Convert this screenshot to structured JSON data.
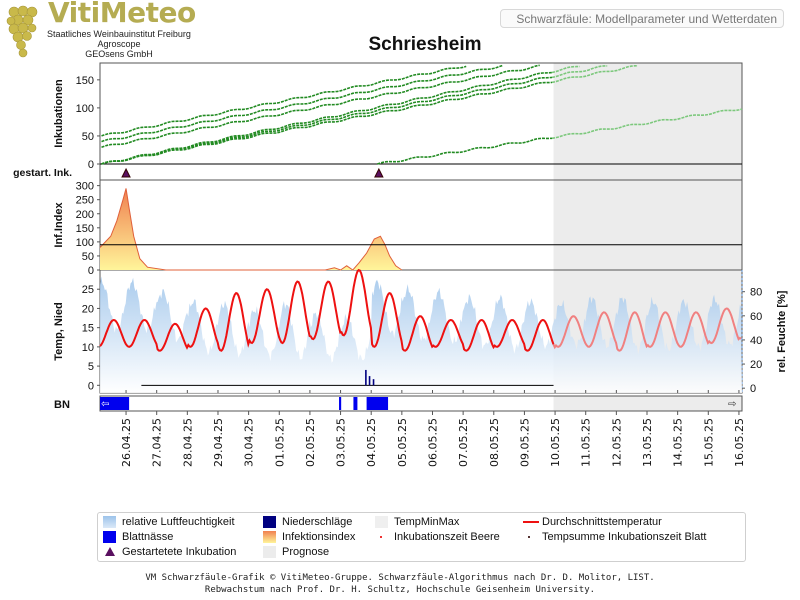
{
  "header": {
    "brand": "VitiMeteo",
    "org_lines": [
      "Staatliches Weinbauinstitut Freiburg",
      "Agroscope",
      "GEOsens GmbH"
    ],
    "top_label": "Schwarzfäule: Modellparameter und Wetterdaten"
  },
  "colors": {
    "incubation": "#228b22",
    "incubation_forecast": "#7cc87c",
    "temp": "#ee1111",
    "temp_forecast": "#f08080",
    "humidity": "#9cc3ea",
    "leaf_wetness": "#0000ee",
    "precip": "#000080",
    "forecast_bg": "#ececec",
    "infection_fill_top": "#f08050",
    "infection_fill_bottom": "#fff59a",
    "marker": "#5a1060"
  },
  "chart_data": {
    "type": "line",
    "title": "Schriesheim",
    "x_dates": [
      "26.04.25",
      "27.04.25",
      "28.04.25",
      "29.04.25",
      "30.04.25",
      "01.05.25",
      "02.05.25",
      "03.05.25",
      "04.05.25",
      "05.05.25",
      "06.05.25",
      "07.05.25",
      "08.05.25",
      "09.05.25",
      "10.05.25",
      "11.05.25",
      "12.05.25",
      "13.05.25",
      "14.05.25",
      "15.05.25",
      "16.05.25"
    ],
    "x_range_days": [
      -0.85,
      20.1
    ],
    "forecast_start_day": 13.95,
    "panels": {
      "incubation": {
        "ylabel": "Inkubationen",
        "yticks": [
          0,
          50,
          100,
          150
        ],
        "ylim": [
          0,
          180
        ],
        "threshold": 0,
        "series": [
          {
            "start_day": -0.8,
            "start_value": 50,
            "slope_per_day": 10.5
          },
          {
            "start_day": -0.8,
            "start_value": 40,
            "slope_per_day": 10.3
          },
          {
            "start_day": -0.8,
            "start_value": 30,
            "slope_per_day": 10.1
          },
          {
            "start_day": -0.8,
            "start_value": 0,
            "slope_per_day": 11.2
          },
          {
            "start_day": -0.8,
            "start_value": 0,
            "slope_per_day": 10.6
          },
          {
            "start_day": -0.8,
            "start_value": 0,
            "slope_per_day": 10.0
          },
          {
            "start_day": 8.2,
            "start_value": 0,
            "slope_per_day": 8.3
          }
        ]
      },
      "started": {
        "ylabel": "gestart. Ink.",
        "marker_days": [
          0,
          8.25
        ]
      },
      "infection_index": {
        "ylabel": "Inf.Index",
        "yticks": [
          0,
          50,
          100,
          150,
          200,
          250,
          300
        ],
        "ylim": [
          0,
          320
        ],
        "threshold": 90,
        "values": [
          {
            "x": -0.85,
            "y": 80
          },
          {
            "x": -0.5,
            "y": 120
          },
          {
            "x": -0.3,
            "y": 175
          },
          {
            "x": -0.1,
            "y": 250
          },
          {
            "x": 0.0,
            "y": 290
          },
          {
            "x": 0.1,
            "y": 220
          },
          {
            "x": 0.25,
            "y": 120
          },
          {
            "x": 0.45,
            "y": 40
          },
          {
            "x": 0.7,
            "y": 10
          },
          {
            "x": 1.3,
            "y": 0
          },
          {
            "x": 6.5,
            "y": 0
          },
          {
            "x": 6.8,
            "y": 8
          },
          {
            "x": 7.0,
            "y": 0
          },
          {
            "x": 7.2,
            "y": 15
          },
          {
            "x": 7.4,
            "y": 0
          },
          {
            "x": 7.6,
            "y": 25
          },
          {
            "x": 7.85,
            "y": 60
          },
          {
            "x": 8.1,
            "y": 110
          },
          {
            "x": 8.3,
            "y": 120
          },
          {
            "x": 8.45,
            "y": 90
          },
          {
            "x": 8.6,
            "y": 50
          },
          {
            "x": 8.8,
            "y": 15
          },
          {
            "x": 9.0,
            "y": 0
          }
        ]
      },
      "weather": {
        "ylabel_left": "Temp, Nied",
        "ylabel_right": "rel. Feuchte [%]",
        "yticks_left": [
          0,
          5,
          10,
          15,
          20,
          25
        ],
        "ylim_left": [
          -2,
          30
        ],
        "yticks_right": [
          0,
          20,
          40,
          60,
          80
        ],
        "ylim_right": [
          -4,
          98
        ],
        "temp_daily_min": [
          10,
          9,
          10,
          9,
          11,
          11,
          12,
          13,
          10,
          9,
          10,
          9,
          10,
          9,
          10,
          10,
          9,
          10,
          10,
          11,
          12
        ],
        "temp_daily_max": [
          17,
          16,
          20,
          24,
          25,
          27,
          27,
          30,
          24,
          18,
          17,
          17,
          17,
          17,
          18,
          19,
          19,
          19,
          19,
          20,
          19
        ],
        "humidity_daily_max": [
          88,
          80,
          72,
          70,
          65,
          70,
          62,
          58,
          88,
          82,
          80,
          75,
          75,
          72,
          70,
          75,
          75,
          72,
          72,
          74,
          74
        ],
        "humidity_daily_min": [
          48,
          40,
          30,
          28,
          27,
          25,
          24,
          24,
          45,
          40,
          38,
          35,
          32,
          35,
          36,
          35,
          32,
          32,
          34,
          36,
          38
        ],
        "precipitation": [
          {
            "x": 7.8,
            "y": 4.0
          },
          {
            "x": 7.92,
            "y": 2.4
          },
          {
            "x": 8.05,
            "y": 1.6
          }
        ]
      },
      "leaf_wetness": {
        "ylabel": "BN",
        "intervals": [
          [
            -0.85,
            0.1
          ],
          [
            6.95,
            7.02
          ],
          [
            7.42,
            7.55
          ],
          [
            7.85,
            8.55
          ]
        ]
      }
    },
    "legend": [
      {
        "label": "relative Luftfeuchtigkeit",
        "swatch": "humidity"
      },
      {
        "label": "Niederschläge",
        "swatch": "precip"
      },
      {
        "label": "TempMinMax",
        "swatch": "tempminmax"
      },
      {
        "label": "Durchschnittstemperatur",
        "swatch": "temp"
      },
      {
        "label": "Blattnässe",
        "swatch": "leaf"
      },
      {
        "label": "Infektionsindex",
        "swatch": "infection"
      },
      {
        "label": "Inkubationszeit Beere",
        "swatch": "dot-red"
      },
      {
        "label": "Tempsumme Inkubationszeit Blatt",
        "swatch": "dot-dark"
      },
      {
        "label": "Gestartetete Inkubation",
        "swatch": "marker"
      },
      {
        "label": "Prognose",
        "swatch": "forecast"
      }
    ]
  },
  "footer": {
    "line1": "VM Schwarzfäule-Grafik © VitiMeteo-Gruppe. Schwarzfäule-Algorithmus nach Dr. D. Molitor, LIST.",
    "line2": "Rebwachstum nach Prof. Dr. H. Schultz, Hochschule Geisenheim University."
  }
}
